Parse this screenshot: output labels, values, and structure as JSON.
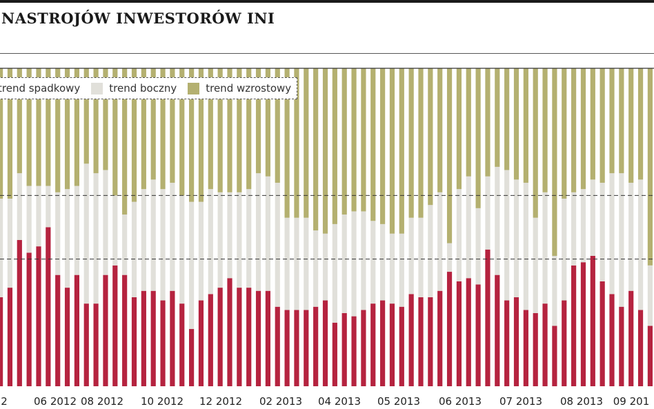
{
  "header": {
    "title": "NASTROJÓW INWESTORÓW INI"
  },
  "colors": {
    "bearish": "#b5233f",
    "neutral": "#e1e0da",
    "bullish": "#b4b070",
    "grid": "#333333",
    "axis_text": "#222222"
  },
  "chart_data": {
    "type": "bar",
    "stacked": true,
    "percent_stacked": true,
    "title": "NASTROJÓW INWESTORÓW INI",
    "xlabel": "",
    "ylabel": "",
    "ylim": [
      0,
      100
    ],
    "grid": true,
    "legend_position": "top-left",
    "x_tick_labels": [
      "2",
      "06 2012",
      "08 2012",
      "10 2012",
      "12 2012",
      "02 2013",
      "04 2013",
      "05 2013",
      "06 2013",
      "07 2013",
      "08 2013",
      "09 201"
    ],
    "series": [
      {
        "name": "trend spadkowy",
        "values": [
          28,
          31,
          46,
          42,
          44,
          50,
          35,
          31,
          35,
          26,
          26,
          35,
          38,
          35,
          28,
          30,
          30,
          27,
          30,
          26,
          18,
          27,
          29,
          31,
          34,
          31,
          31,
          30,
          30,
          25,
          24,
          24,
          24,
          25,
          27,
          20,
          23,
          22,
          24,
          26,
          27,
          26,
          25,
          29,
          28,
          28,
          30,
          36,
          33,
          34,
          32,
          43,
          35,
          27,
          28,
          24,
          23,
          26,
          19,
          27,
          38,
          39,
          41,
          33,
          29,
          25,
          30,
          24,
          19
        ]
      },
      {
        "name": "trend boczny",
        "values": [
          31,
          28,
          21,
          21,
          19,
          13,
          26,
          31,
          28,
          44,
          41,
          33,
          22,
          19,
          30,
          32,
          35,
          35,
          34,
          34,
          40,
          31,
          33,
          30,
          27,
          30,
          31,
          37,
          36,
          39,
          29,
          29,
          29,
          24,
          21,
          31,
          31,
          33,
          31,
          26,
          24,
          22,
          23,
          24,
          25,
          29,
          31,
          9,
          29,
          32,
          24,
          23,
          34,
          41,
          37,
          40,
          30,
          35,
          22,
          32,
          23,
          23,
          24,
          31,
          38,
          42,
          34,
          41,
          19
        ]
      },
      {
        "name": "trend wzrostowy",
        "values": [
          41,
          41,
          33,
          37,
          37,
          37,
          39,
          38,
          37,
          30,
          33,
          32,
          40,
          46,
          42,
          38,
          35,
          38,
          36,
          40,
          42,
          42,
          38,
          39,
          39,
          39,
          38,
          33,
          34,
          36,
          47,
          47,
          47,
          51,
          52,
          49,
          46,
          45,
          45,
          48,
          49,
          52,
          52,
          47,
          47,
          43,
          39,
          55,
          38,
          34,
          44,
          34,
          31,
          32,
          35,
          36,
          47,
          39,
          59,
          41,
          39,
          38,
          35,
          36,
          33,
          33,
          36,
          35,
          62
        ]
      }
    ]
  },
  "legend": {
    "items": [
      {
        "label": "trend spadkowy",
        "color": "#b5233f"
      },
      {
        "label": "trend boczny",
        "color": "#e1e0da"
      },
      {
        "label": "trend wzrostowy",
        "color": "#b4b070"
      }
    ]
  }
}
